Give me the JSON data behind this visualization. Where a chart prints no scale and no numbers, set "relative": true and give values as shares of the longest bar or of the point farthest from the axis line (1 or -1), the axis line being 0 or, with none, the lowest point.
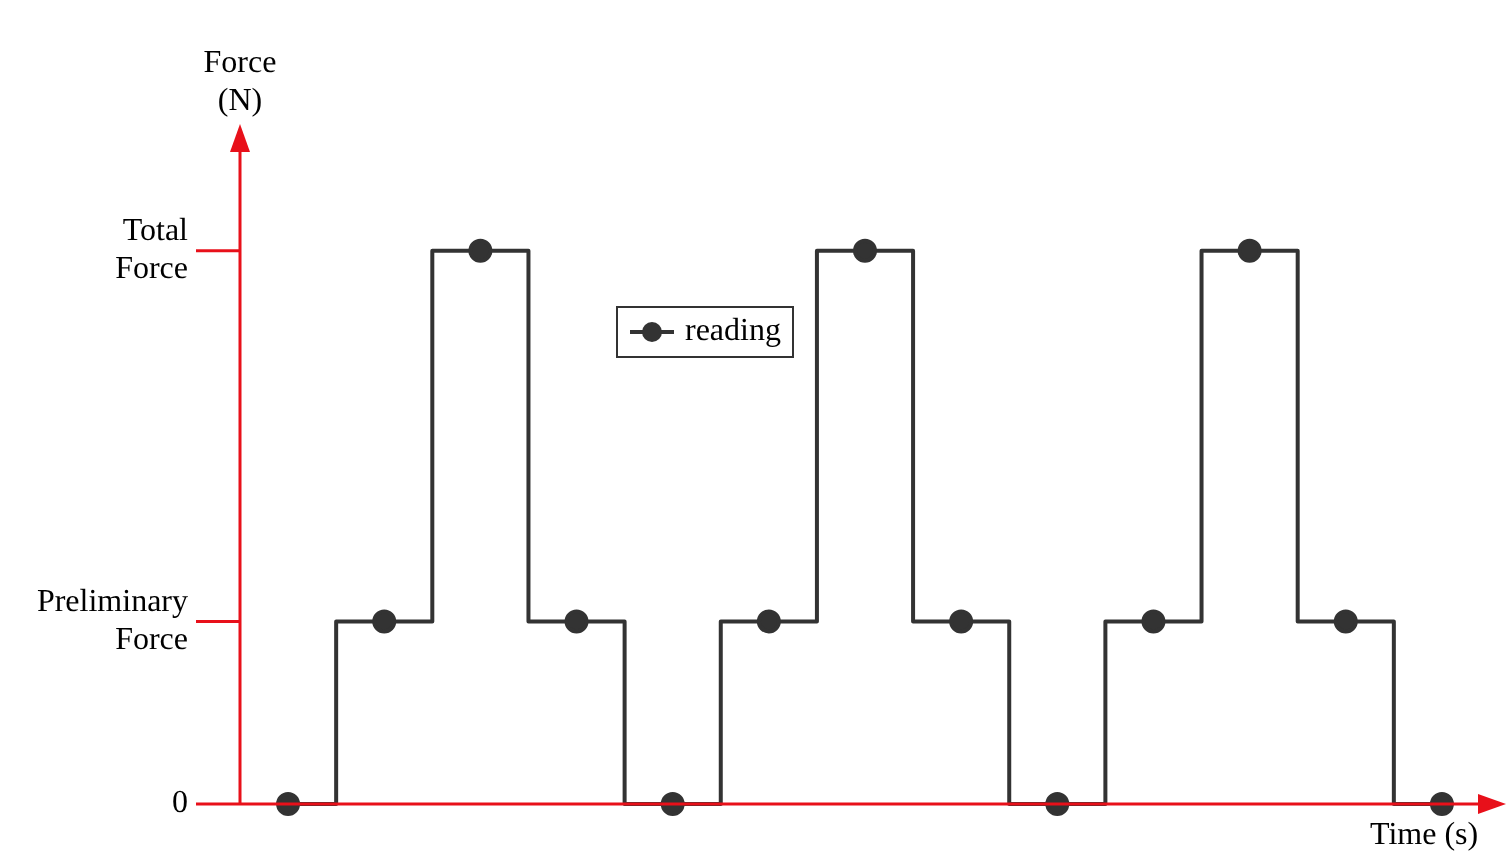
{
  "chart_data": {
    "type": "step",
    "ylabel": "Force (N)",
    "xlabel": "Time (s)",
    "relative": true,
    "categories": [
      null,
      null,
      null,
      null,
      null,
      null,
      null,
      null,
      null,
      null,
      null,
      null,
      null
    ],
    "series": [
      {
        "name": "reading",
        "color": "#333333",
        "values": [
          0,
          0.33,
          1,
          0.33,
          0,
          0.33,
          1,
          0.33,
          0,
          0.33,
          1,
          0.33,
          0
        ]
      }
    ],
    "ref_lines": [
      {
        "axis": "y",
        "value": 0,
        "label": "0"
      },
      {
        "axis": "y",
        "value": 0.33,
        "label": "Preliminary Force"
      },
      {
        "axis": "y",
        "value": 1,
        "label": "Total Force"
      }
    ],
    "marker": "circle",
    "legend": "top left",
    "grid": false
  }
}
